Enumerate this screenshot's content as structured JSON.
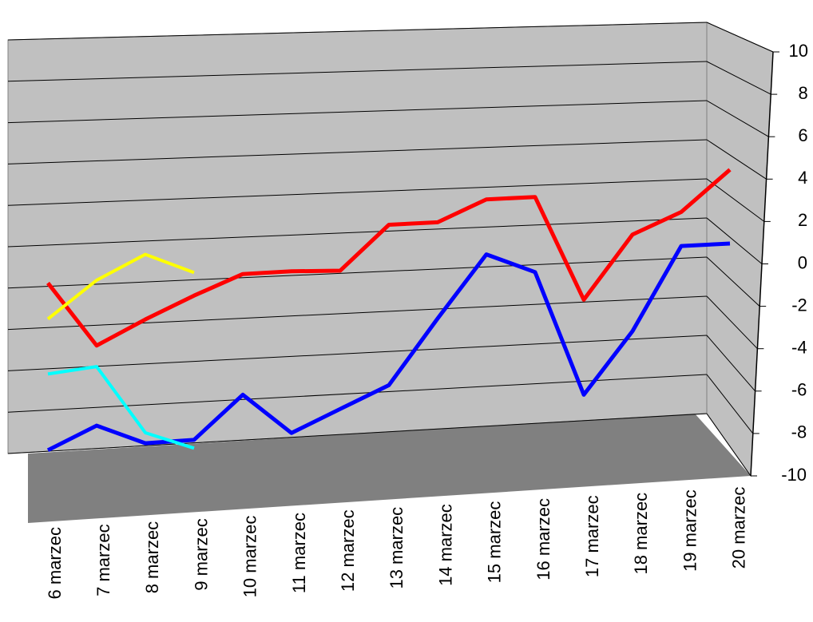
{
  "chart_data": {
    "type": "line",
    "categories": [
      "6 marzec",
      "7 marzec",
      "8 marzec",
      "9 marzec",
      "10 marzec",
      "11 marzec",
      "12 marzec",
      "13 marzec",
      "14 marzec",
      "15 marzec",
      "16 marzec",
      "17 marzec",
      "18 marzec",
      "19 marzec",
      "20 marzec"
    ],
    "series": [
      {
        "color": "#ff0000",
        "values": [
          -1.3,
          -4.3,
          -3.1,
          -2.0,
          -1.0,
          -0.9,
          -0.9,
          1.3,
          1.4,
          2.5,
          2.6,
          -2.5,
          0.7,
          1.8,
          3.9
        ]
      },
      {
        "color": "#0000ff",
        "values": [
          -9.2,
          -8.1,
          -9.0,
          -8.9,
          -6.8,
          -8.7,
          -7.6,
          -6.5,
          -3.3,
          -0.2,
          -1.1,
          -7.2,
          -4.1,
          0.1,
          0.2
        ]
      },
      {
        "color": "#ffff00",
        "values": [
          -3.0,
          -1.2,
          0.0,
          -0.9,
          null,
          null,
          null,
          null,
          null,
          null,
          null,
          null,
          null,
          null,
          null
        ]
      },
      {
        "color": "#00ffff",
        "values": [
          -5.6,
          -5.3,
          -8.5,
          -9.3,
          null,
          null,
          null,
          null,
          null,
          null,
          null,
          null,
          null,
          null,
          null
        ]
      }
    ],
    "ylim": [
      -10,
      10
    ],
    "yticks": [
      -10,
      -8,
      -6,
      -4,
      -2,
      0,
      2,
      4,
      6,
      8,
      10
    ],
    "grid": true
  }
}
